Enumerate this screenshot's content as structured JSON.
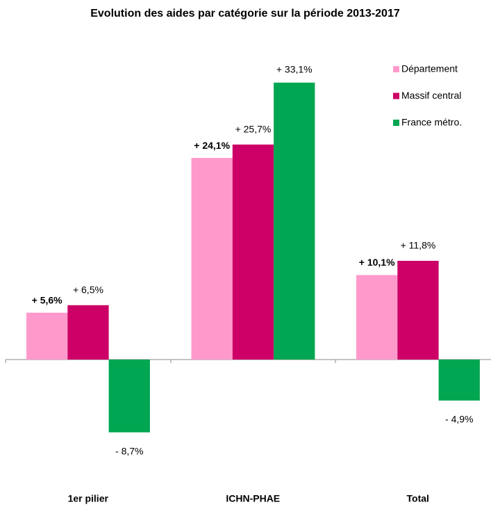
{
  "chart_data": {
    "type": "bar",
    "title": "Evolution des aides par catégorie sur la période 2013-2017",
    "categories": [
      "1er pilier",
      "ICHN-PHAE",
      "Total"
    ],
    "series": [
      {
        "name": "Département",
        "color": "#ff99cc",
        "values": [
          5.6,
          24.1,
          10.1
        ],
        "value_labels": [
          "+ 5,6%",
          "+ 24,1%",
          "+ 10,1%"
        ]
      },
      {
        "name": "Massif central",
        "color": "#cc0066",
        "values": [
          6.5,
          25.7,
          11.8
        ],
        "value_labels": [
          "+ 6,5%",
          "+ 25,7%",
          "+ 11,8%"
        ]
      },
      {
        "name": "France métro.",
        "color": "#00a651",
        "values": [
          -8.7,
          33.1,
          -4.9
        ],
        "value_labels": [
          "- 8,7%",
          "+ 33,1%",
          "- 4,9%"
        ]
      }
    ],
    "legend": "top-right"
  }
}
